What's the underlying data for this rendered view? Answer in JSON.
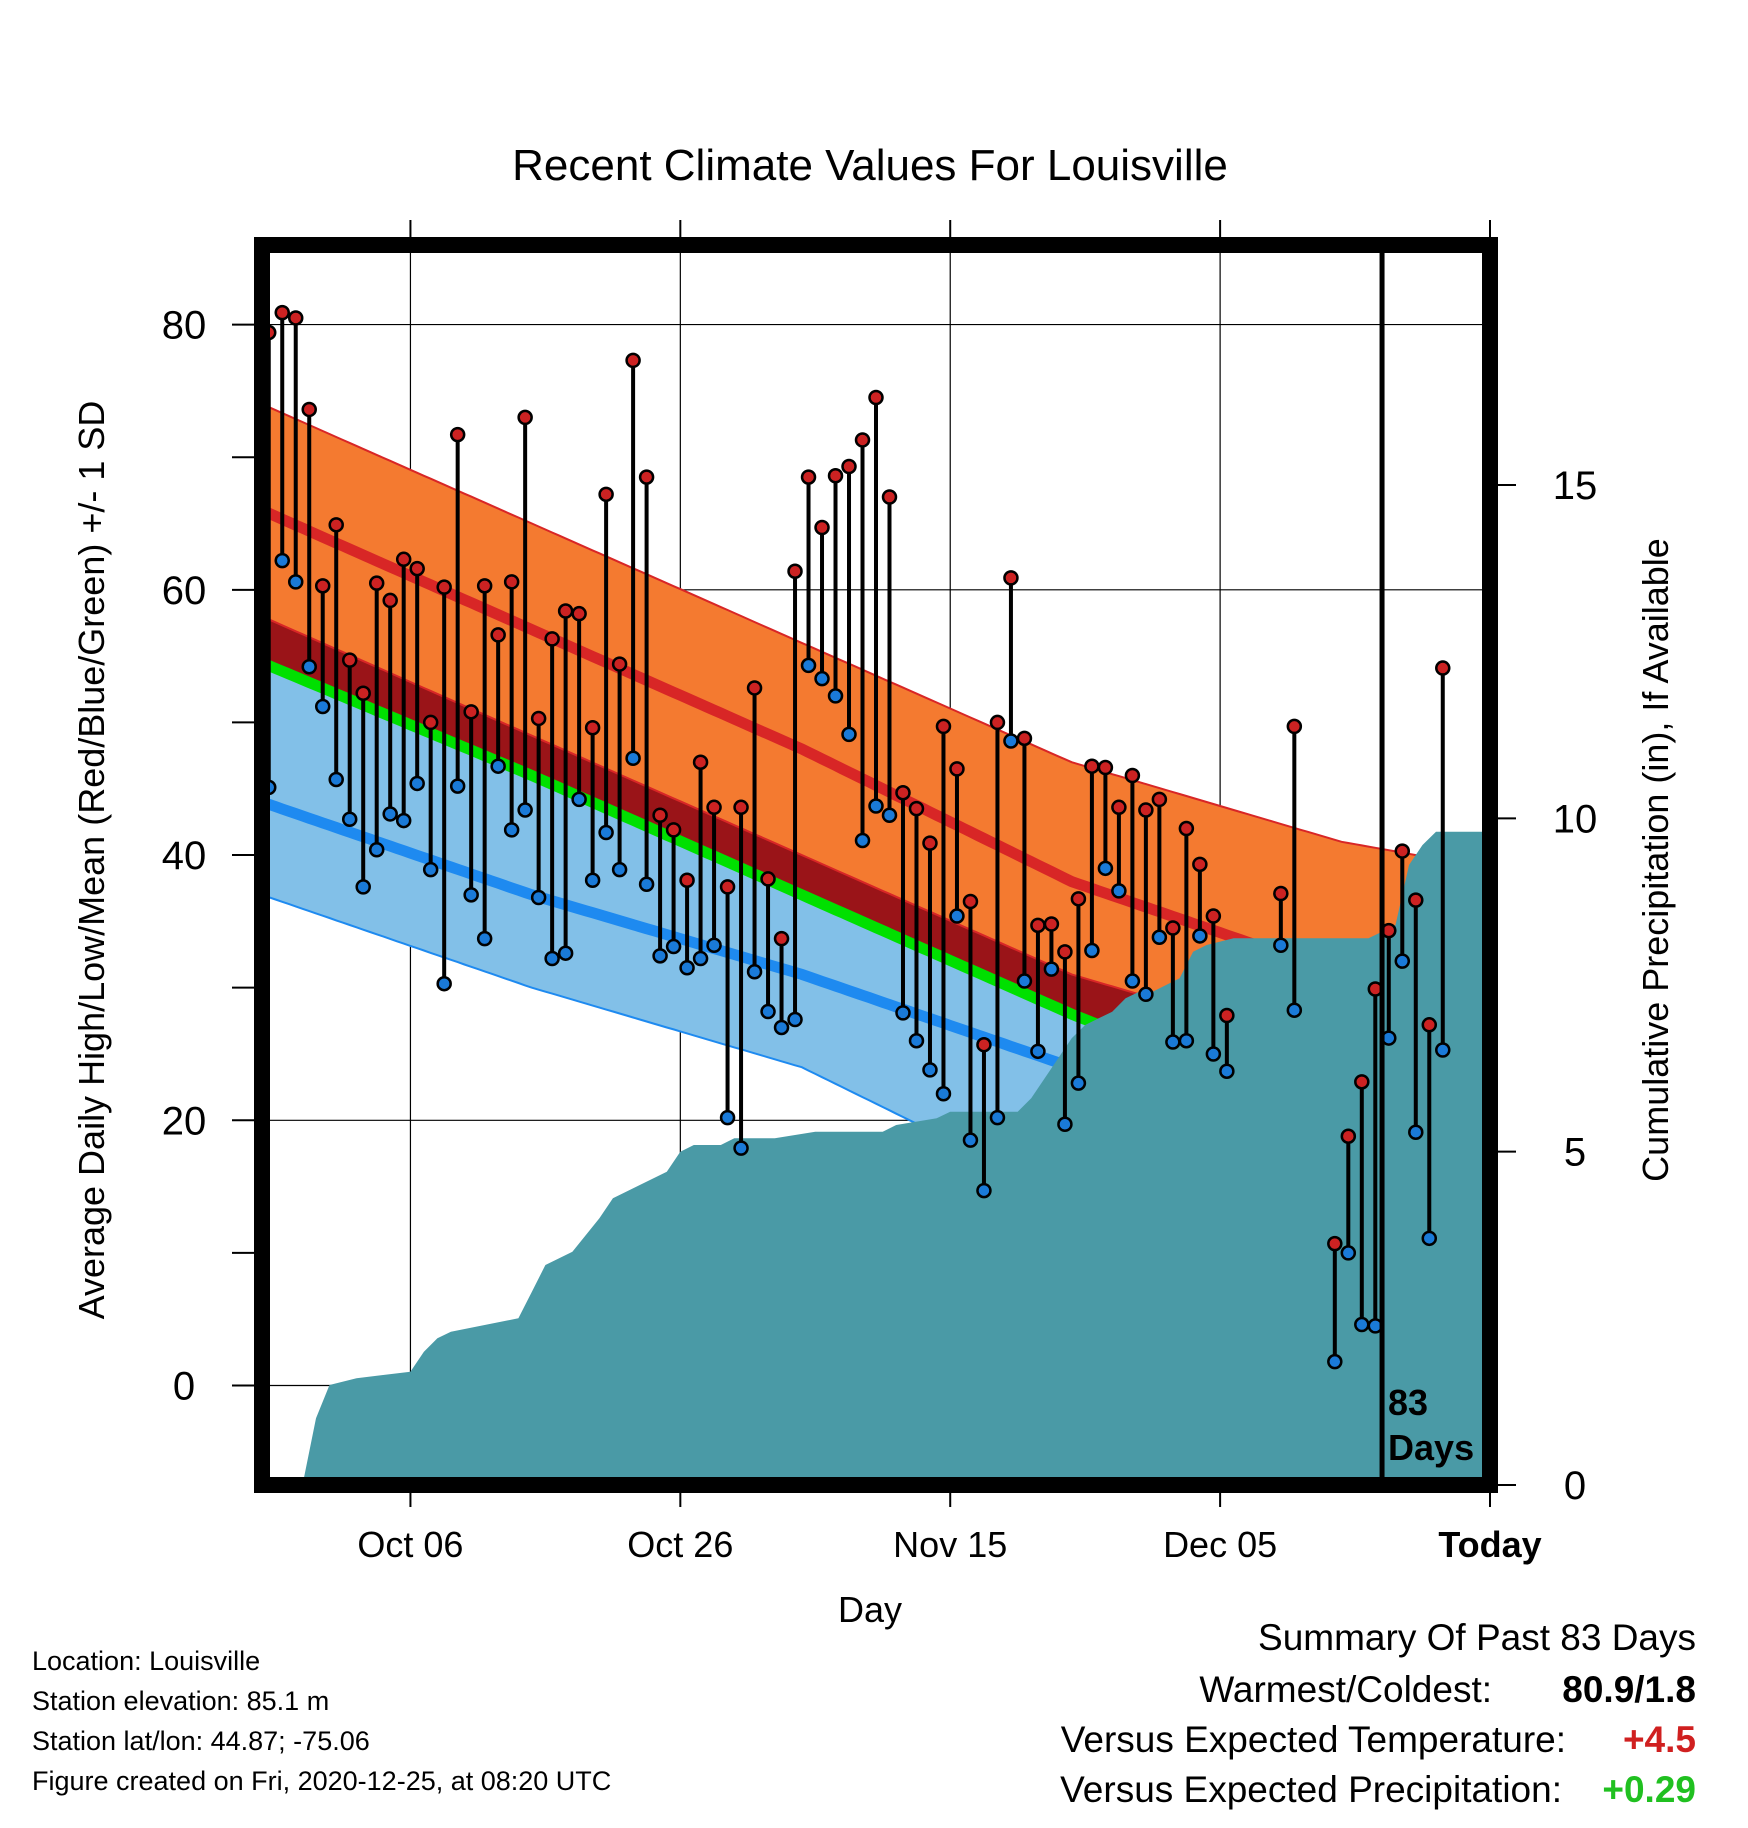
{
  "chart_data": {
    "type": "line",
    "title": "Recent Climate Values For Louisville",
    "xlabel": "Day",
    "ylabel": "Average Daily High/Low/Mean (Red/Blue/Green) +/- 1 SD",
    "y2label": "Cumulative Precipitation (in), If Available",
    "x_range_days": [
      -83,
      8
    ],
    "ylim": [
      -7.5,
      86
    ],
    "y2lim": [
      0,
      18.6
    ],
    "yticks": [
      0,
      20,
      40,
      60,
      80
    ],
    "y2ticks": [
      0,
      5,
      10,
      15
    ],
    "x_ticks": [
      {
        "day": -72,
        "label": "Oct 06"
      },
      {
        "day": -52,
        "label": "Oct 26"
      },
      {
        "day": -32,
        "label": "Nov 15"
      },
      {
        "day": -12,
        "label": "Dec 05"
      },
      {
        "day": 8,
        "label": "Today"
      }
    ],
    "today_day": 0,
    "days_label_line1": "83",
    "days_label_line2": "Days",
    "grid": true,
    "normals": {
      "days": [
        -83,
        -63,
        -43,
        -23,
        -3,
        8
      ],
      "high_mean": [
        66,
        57,
        48,
        38,
        31,
        27
      ],
      "high_plus_sd": [
        74,
        65,
        56,
        47,
        41,
        39
      ],
      "high_minus_sd": [
        58,
        49,
        40,
        31,
        25,
        23
      ],
      "mean": [
        54.5,
        46,
        37,
        28,
        20,
        15
      ],
      "low_mean": [
        44,
        37,
        31,
        24,
        12,
        8
      ],
      "low_minus_sd": [
        37,
        30,
        24,
        14,
        -2,
        -8
      ]
    },
    "daily": {
      "highs": [
        79.4,
        80.9,
        80.5,
        73.6,
        60.3,
        64.9,
        54.7,
        52.2,
        60.5,
        59.2,
        62.3,
        61.6,
        50.0,
        60.2,
        71.7,
        50.8,
        60.3,
        56.6,
        60.6,
        73.0,
        50.3,
        56.3,
        58.4,
        58.2,
        49.6,
        67.2,
        54.4,
        77.3,
        68.5,
        43.0,
        41.9,
        38.1,
        47.0,
        43.6,
        37.6,
        43.6,
        52.6,
        38.2,
        33.7,
        61.4,
        68.5,
        64.7,
        68.6,
        69.3,
        71.3,
        74.5,
        67.0,
        44.7,
        43.5,
        40.9,
        49.7,
        46.5,
        36.5,
        25.7,
        50.0,
        60.9,
        48.8,
        34.7,
        34.8,
        32.7,
        36.7,
        46.7,
        46.6,
        43.6,
        46.0,
        43.4,
        44.2,
        34.5,
        42.0,
        39.3,
        35.4,
        27.9,
        null,
        null,
        null,
        37.1,
        49.7,
        null,
        null,
        10.7,
        18.8,
        22.9,
        29.9,
        34.3,
        40.3,
        36.6,
        27.2,
        54.1
      ],
      "lows": [
        45.1,
        62.2,
        60.6,
        54.2,
        51.2,
        45.7,
        42.7,
        37.6,
        40.4,
        43.1,
        42.6,
        45.4,
        38.9,
        30.3,
        45.2,
        37.0,
        33.7,
        46.7,
        41.9,
        43.4,
        36.8,
        32.2,
        32.6,
        44.2,
        38.1,
        41.7,
        38.9,
        47.3,
        37.8,
        32.4,
        33.1,
        31.5,
        32.2,
        33.2,
        20.2,
        17.9,
        31.2,
        28.2,
        27.0,
        27.6,
        54.3,
        53.3,
        52.0,
        49.1,
        41.1,
        43.7,
        43.0,
        28.1,
        26.0,
        23.8,
        22.0,
        35.4,
        18.5,
        14.7,
        20.2,
        48.6,
        30.5,
        25.2,
        31.4,
        19.7,
        22.8,
        32.8,
        39.0,
        37.3,
        30.5,
        29.5,
        33.8,
        25.9,
        26.0,
        33.9,
        25.0,
        23.7,
        null,
        null,
        null,
        33.2,
        28.3,
        null,
        null,
        1.8,
        10.0,
        4.6,
        4.5,
        26.2,
        32.0,
        19.1,
        11.1,
        25.3
      ]
    },
    "precip_cumulative": {
      "days": [
        -83,
        -80,
        -79,
        -78,
        -76,
        -72,
        -71,
        -70,
        -69,
        -64,
        -63,
        -62,
        -60,
        -58,
        -57,
        -55,
        -53,
        -52,
        -51,
        -49,
        -48,
        -45,
        -42,
        -37,
        -36,
        -33,
        -32,
        -27,
        -26,
        -25,
        -24,
        -23,
        -22,
        -21,
        -20,
        -19,
        -18,
        -17,
        -16,
        -15,
        -14,
        -13,
        -11,
        -10,
        -8,
        -4,
        -1,
        0,
        1,
        2,
        3,
        4,
        5,
        8
      ],
      "values": [
        0,
        0,
        1.0,
        1.5,
        1.6,
        1.7,
        2.0,
        2.2,
        2.3,
        2.5,
        2.9,
        3.3,
        3.5,
        4.0,
        4.3,
        4.5,
        4.7,
        5.0,
        5.1,
        5.1,
        5.2,
        5.2,
        5.3,
        5.3,
        5.4,
        5.5,
        5.6,
        5.6,
        5.8,
        6.1,
        6.4,
        6.7,
        6.9,
        7.0,
        7.1,
        7.3,
        7.4,
        7.4,
        7.5,
        7.6,
        8.0,
        8.1,
        8.2,
        8.2,
        8.2,
        8.2,
        8.2,
        8.3,
        8.4,
        9.3,
        9.6,
        9.8,
        9.8,
        9.8
      ]
    }
  },
  "footer": {
    "location": "Location: Louisville",
    "elevation": "Station elevation: 85.1 m",
    "latlon": "Station lat/lon: 44.87; -75.06",
    "created": "Figure created on Fri, 2020-12-25, at 08:20 UTC"
  },
  "summary": {
    "title": "Summary Of Past 83 Days",
    "warm_cold_label": "Warmest/Coldest:",
    "warm_cold_value": "80.9/1.8",
    "temp_label": "Versus Expected Temperature:",
    "temp_value": "+4.5",
    "precip_label": "Versus Expected Precipitation:",
    "precip_value": "+0.29"
  },
  "colors": {
    "high_band": "#f47a30",
    "high_edge": "#d82626",
    "low_band": "#82c0e8",
    "low_line": "#1e8af0",
    "mean_line": "#00e000",
    "warm_excess": "#9a1418",
    "precip": "#4a9aa6",
    "high_dot": "#cc2222",
    "low_dot": "#1a7ad8",
    "positive_temp": "#d02020",
    "positive_precip": "#20c020"
  }
}
